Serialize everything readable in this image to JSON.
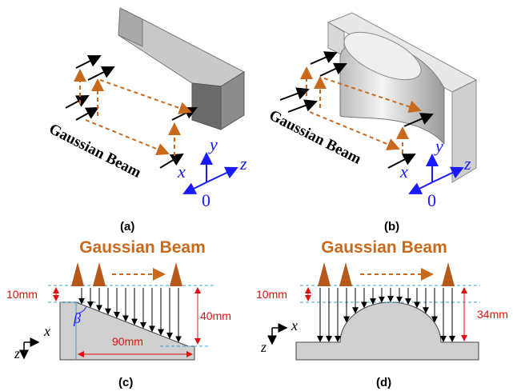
{
  "panels": [
    {
      "label": "(a)",
      "beam_label": "Gaussian Beam",
      "axes": {
        "x": "x",
        "y": "y",
        "z": "z",
        "origin": "0"
      }
    },
    {
      "label": "(b)",
      "beam_label": "Gaussian Beam",
      "axes": {
        "x": "x",
        "y": "y",
        "z": "z",
        "origin": "0"
      }
    },
    {
      "label": "(c)",
      "beam_label": "Gaussian Beam",
      "dimensions": [
        "10mm",
        "40mm",
        "90mm"
      ],
      "angle": "β",
      "axes": {
        "x": "x",
        "z": "z"
      }
    },
    {
      "label": "(d)",
      "beam_label": "Gaussian Beam",
      "dimensions": [
        "10mm",
        "34mm"
      ],
      "axes": {
        "x": "x",
        "z": "z"
      }
    }
  ]
}
